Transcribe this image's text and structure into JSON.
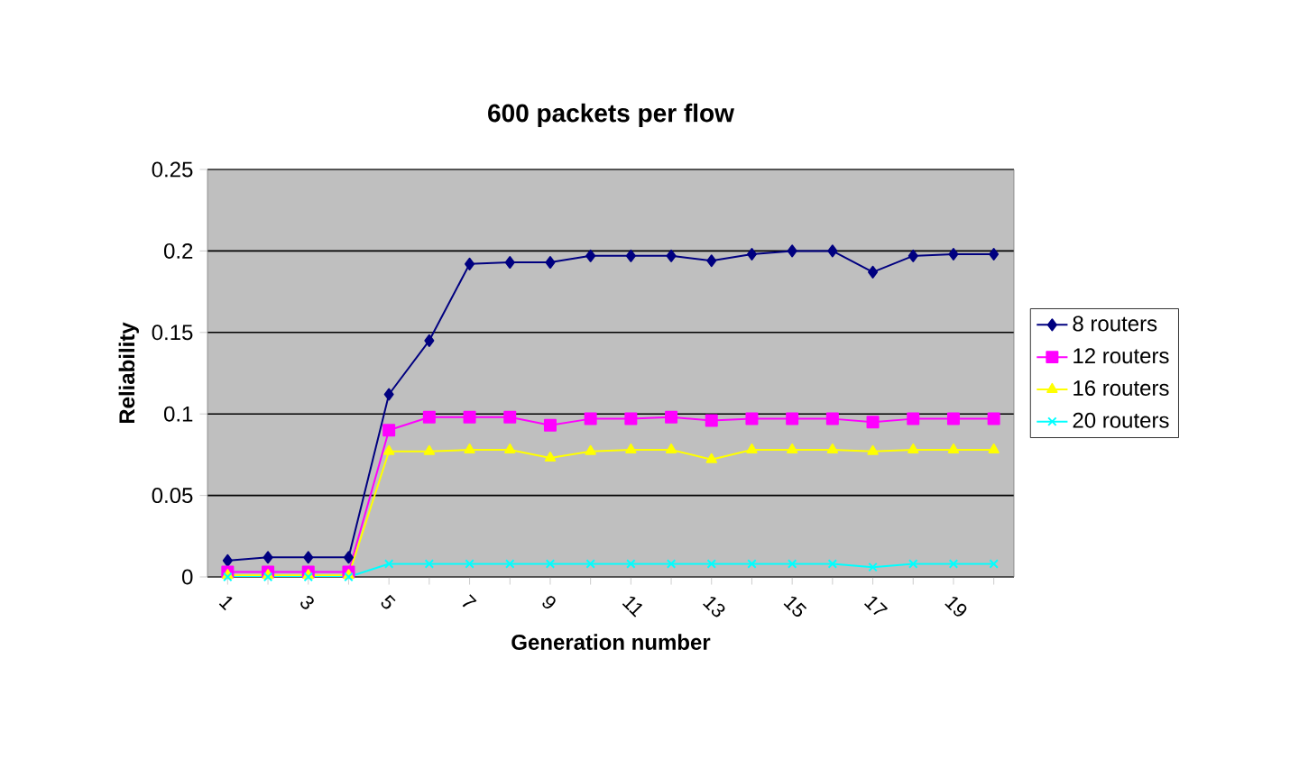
{
  "chart_data": {
    "type": "line",
    "title": "600 packets per flow",
    "xlabel": "Generation number",
    "ylabel": "Reliability",
    "categories": [
      "1",
      null,
      "3",
      null,
      "5",
      null,
      "7",
      null,
      "9",
      null,
      "11",
      null,
      "13",
      null,
      "15",
      null,
      "17",
      null,
      "19",
      null
    ],
    "series": [
      {
        "name": "8 routers",
        "color": "#000080",
        "marker": "diamond",
        "values": [
          0.01,
          0.012,
          0.012,
          0.012,
          0.112,
          0.145,
          0.192,
          0.193,
          0.193,
          0.197,
          0.197,
          0.197,
          0.194,
          0.198,
          0.2,
          0.2,
          0.187,
          0.197,
          0.198,
          0.198
        ]
      },
      {
        "name": "12 routers",
        "color": "#ff00ff",
        "marker": "square",
        "values": [
          0.003,
          0.003,
          0.003,
          0.003,
          0.09,
          0.098,
          0.098,
          0.098,
          0.093,
          0.097,
          0.097,
          0.098,
          0.096,
          0.097,
          0.097,
          0.097,
          0.095,
          0.097,
          0.097,
          0.097
        ]
      },
      {
        "name": "16 routers",
        "color": "#ffff00",
        "marker": "triangle",
        "values": [
          0.001,
          0.001,
          0.001,
          0.001,
          0.077,
          0.077,
          0.078,
          0.078,
          0.073,
          0.077,
          0.078,
          0.078,
          0.072,
          0.078,
          0.078,
          0.078,
          0.077,
          0.078,
          0.078,
          0.078
        ]
      },
      {
        "name": "20 routers",
        "color": "#00ffff",
        "marker": "cross",
        "values": [
          0,
          0,
          0,
          0,
          0.008,
          0.008,
          0.008,
          0.008,
          0.008,
          0.008,
          0.008,
          0.008,
          0.008,
          0.008,
          0.008,
          0.008,
          0.006,
          0.008,
          0.008,
          0.008
        ]
      }
    ],
    "ylim": [
      0,
      0.25
    ],
    "yticks": [
      0,
      0.05,
      0.1,
      0.15,
      0.2,
      0.25
    ],
    "grid": "y",
    "legend": "right",
    "line_style": "solid"
  }
}
